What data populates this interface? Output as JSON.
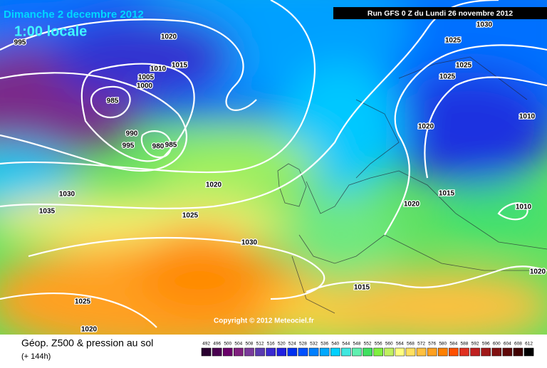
{
  "header": {
    "date": "Dimanche 2 decembre 2012",
    "time": "1:00 locale",
    "run": "Run GFS 0 Z du Lundi 26 novembre 2012"
  },
  "copyright": "Copyright © 2012 Meteociel.fr",
  "footer": {
    "title": "Géop. Z500 & pression au sol",
    "lead": "(+ 144h)"
  },
  "isobar_labels": [
    "995",
    "1020",
    "1015",
    "1010",
    "1005",
    "1000",
    "985",
    "990",
    "995",
    "980",
    "985",
    "1030",
    "1025",
    "1025",
    "1025",
    "1010",
    "1020",
    "1015",
    "1020",
    "1010",
    "1030",
    "1035",
    "1020",
    "1025",
    "1030",
    "1015",
    "1025",
    "1020",
    "1020"
  ],
  "legend": {
    "values": [
      492,
      496,
      500,
      504,
      508,
      512,
      516,
      520,
      524,
      528,
      532,
      536,
      540,
      544,
      548,
      552,
      556,
      560,
      564,
      568,
      572,
      576,
      580,
      584,
      588,
      592,
      596,
      600,
      604,
      608,
      612
    ],
    "colors": [
      "#2a0030",
      "#4a0050",
      "#6a006a",
      "#80207e",
      "#7a3a9a",
      "#5a3ab0",
      "#3a2ad0",
      "#2020e0",
      "#0030f0",
      "#0050ff",
      "#0080ff",
      "#00a8ff",
      "#00d0ff",
      "#40e8e0",
      "#60f0b0",
      "#40e060",
      "#80f040",
      "#c0f060",
      "#ffff80",
      "#ffe060",
      "#ffc040",
      "#ffa020",
      "#ff8000",
      "#ff5000",
      "#e03020",
      "#c02020",
      "#a01818",
      "#801010",
      "#600808",
      "#400000",
      "#000000"
    ]
  }
}
